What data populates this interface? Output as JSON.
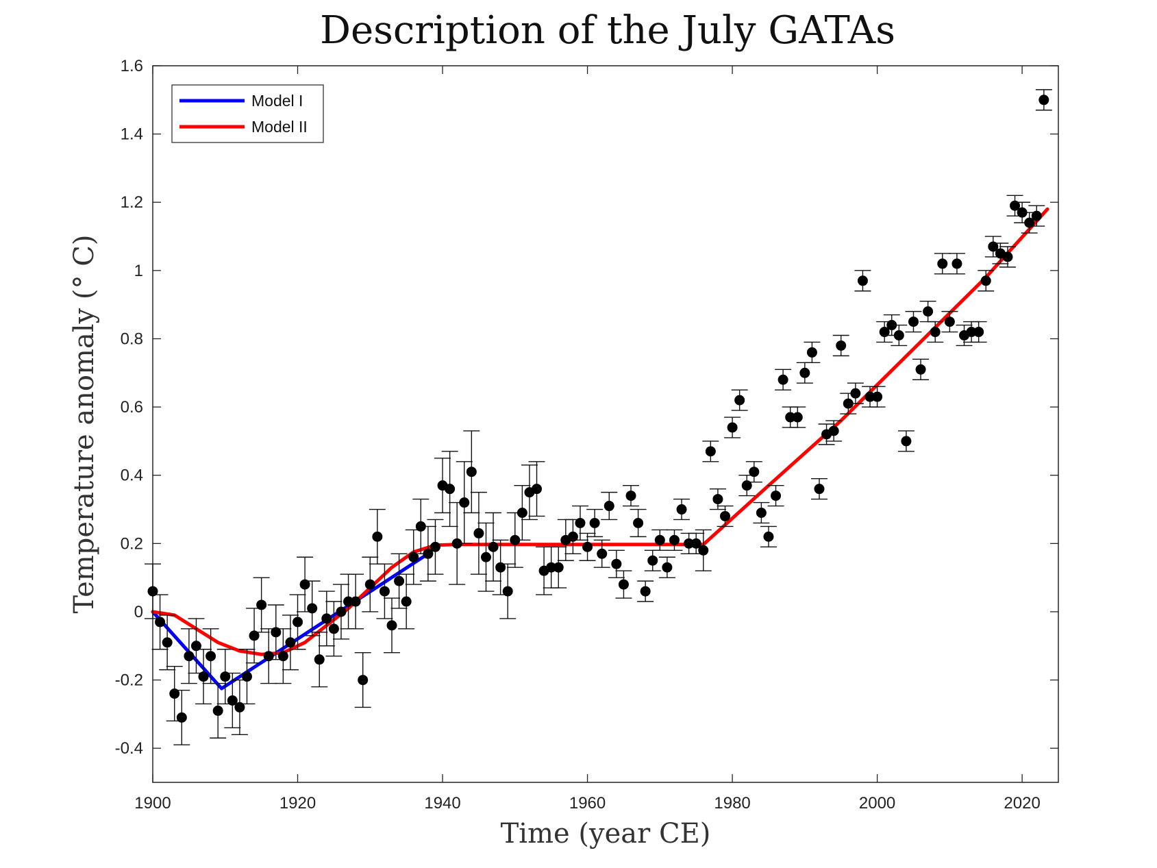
{
  "chart_data": {
    "type": "scatter",
    "title": "Description of the July GATAs",
    "xlabel": "Time (year CE)",
    "ylabel": "Temperature anomaly (° C)",
    "xlim": [
      1900,
      2025
    ],
    "ylim": [
      -0.5,
      1.6
    ],
    "xticks": [
      1900,
      1920,
      1940,
      1960,
      1980,
      2000,
      2020
    ],
    "yticks": [
      -0.4,
      -0.2,
      0,
      0.2,
      0.4,
      0.6,
      0.8,
      1,
      1.2,
      1.4,
      1.6
    ],
    "ytick_labels": [
      "-0.4",
      "-0.2",
      "0",
      "0.2",
      "0.4",
      "0.6",
      "0.8",
      "1",
      "1.2",
      "1.4",
      "1.6"
    ],
    "grid": false,
    "legend_position": "top-left",
    "observations": {
      "name": "July GATA",
      "color": "#000000",
      "points": [
        [
          1900,
          0.06,
          0.08
        ],
        [
          1901,
          -0.03,
          0.08
        ],
        [
          1902,
          -0.09,
          0.08
        ],
        [
          1903,
          -0.24,
          0.08
        ],
        [
          1904,
          -0.31,
          0.08
        ],
        [
          1905,
          -0.13,
          0.08
        ],
        [
          1906,
          -0.1,
          0.08
        ],
        [
          1907,
          -0.19,
          0.08
        ],
        [
          1908,
          -0.13,
          0.08
        ],
        [
          1909,
          -0.29,
          0.08
        ],
        [
          1910,
          -0.19,
          0.08
        ],
        [
          1911,
          -0.26,
          0.08
        ],
        [
          1912,
          -0.28,
          0.08
        ],
        [
          1913,
          -0.19,
          0.08
        ],
        [
          1914,
          -0.07,
          0.08
        ],
        [
          1915,
          0.02,
          0.08
        ],
        [
          1916,
          -0.13,
          0.08
        ],
        [
          1917,
          -0.06,
          0.08
        ],
        [
          1918,
          -0.13,
          0.08
        ],
        [
          1919,
          -0.09,
          0.08
        ],
        [
          1920,
          -0.03,
          0.08
        ],
        [
          1921,
          0.08,
          0.08
        ],
        [
          1922,
          0.01,
          0.08
        ],
        [
          1923,
          -0.14,
          0.08
        ],
        [
          1924,
          -0.02,
          0.08
        ],
        [
          1925,
          -0.05,
          0.08
        ],
        [
          1926,
          0.0,
          0.08
        ],
        [
          1927,
          0.03,
          0.08
        ],
        [
          1928,
          0.03,
          0.08
        ],
        [
          1929,
          -0.2,
          0.08
        ],
        [
          1930,
          0.08,
          0.08
        ],
        [
          1931,
          0.22,
          0.08
        ],
        [
          1932,
          0.06,
          0.08
        ],
        [
          1933,
          -0.04,
          0.08
        ],
        [
          1934,
          0.09,
          0.08
        ],
        [
          1935,
          0.03,
          0.08
        ],
        [
          1936,
          0.16,
          0.08
        ],
        [
          1937,
          0.25,
          0.08
        ],
        [
          1938,
          0.17,
          0.08
        ],
        [
          1939,
          0.19,
          0.08
        ],
        [
          1940,
          0.37,
          0.08
        ],
        [
          1941,
          0.36,
          0.11
        ],
        [
          1942,
          0.2,
          0.12
        ],
        [
          1943,
          0.32,
          0.12
        ],
        [
          1944,
          0.41,
          0.12
        ],
        [
          1945,
          0.23,
          0.12
        ],
        [
          1946,
          0.16,
          0.1
        ],
        [
          1947,
          0.19,
          0.1
        ],
        [
          1948,
          0.13,
          0.08
        ],
        [
          1949,
          0.06,
          0.08
        ],
        [
          1950,
          0.21,
          0.08
        ],
        [
          1951,
          0.29,
          0.08
        ],
        [
          1952,
          0.35,
          0.08
        ],
        [
          1953,
          0.36,
          0.08
        ],
        [
          1954,
          0.12,
          0.07
        ],
        [
          1955,
          0.13,
          0.06
        ],
        [
          1956,
          0.13,
          0.06
        ],
        [
          1957,
          0.21,
          0.06
        ],
        [
          1958,
          0.22,
          0.05
        ],
        [
          1959,
          0.26,
          0.05
        ],
        [
          1960,
          0.19,
          0.04
        ],
        [
          1961,
          0.26,
          0.04
        ],
        [
          1962,
          0.17,
          0.04
        ],
        [
          1963,
          0.31,
          0.04
        ],
        [
          1964,
          0.14,
          0.04
        ],
        [
          1965,
          0.08,
          0.04
        ],
        [
          1966,
          0.34,
          0.03
        ],
        [
          1967,
          0.26,
          0.04
        ],
        [
          1968,
          0.06,
          0.03
        ],
        [
          1969,
          0.15,
          0.03
        ],
        [
          1970,
          0.21,
          0.03
        ],
        [
          1971,
          0.13,
          0.03
        ],
        [
          1972,
          0.21,
          0.03
        ],
        [
          1973,
          0.3,
          0.03
        ],
        [
          1974,
          0.2,
          0.03
        ],
        [
          1975,
          0.2,
          0.03
        ],
        [
          1976,
          0.18,
          0.06
        ],
        [
          1977,
          0.47,
          0.03
        ],
        [
          1978,
          0.33,
          0.03
        ],
        [
          1979,
          0.28,
          0.03
        ],
        [
          1980,
          0.54,
          0.03
        ],
        [
          1981,
          0.62,
          0.03
        ],
        [
          1982,
          0.37,
          0.03
        ],
        [
          1983,
          0.41,
          0.03
        ],
        [
          1984,
          0.29,
          0.03
        ],
        [
          1985,
          0.22,
          0.03
        ],
        [
          1986,
          0.34,
          0.03
        ],
        [
          1987,
          0.68,
          0.03
        ],
        [
          1988,
          0.57,
          0.03
        ],
        [
          1989,
          0.57,
          0.03
        ],
        [
          1990,
          0.7,
          0.03
        ],
        [
          1991,
          0.76,
          0.03
        ],
        [
          1992,
          0.36,
          0.03
        ],
        [
          1993,
          0.52,
          0.03
        ],
        [
          1994,
          0.53,
          0.03
        ],
        [
          1995,
          0.78,
          0.03
        ],
        [
          1996,
          0.61,
          0.03
        ],
        [
          1997,
          0.64,
          0.03
        ],
        [
          1998,
          0.97,
          0.03
        ],
        [
          1999,
          0.63,
          0.03
        ],
        [
          2000,
          0.63,
          0.03
        ],
        [
          2001,
          0.82,
          0.03
        ],
        [
          2002,
          0.84,
          0.03
        ],
        [
          2003,
          0.81,
          0.03
        ],
        [
          2004,
          0.5,
          0.03
        ],
        [
          2005,
          0.85,
          0.03
        ],
        [
          2006,
          0.71,
          0.03
        ],
        [
          2007,
          0.88,
          0.03
        ],
        [
          2008,
          0.82,
          0.03
        ],
        [
          2009,
          1.02,
          0.03
        ],
        [
          2010,
          0.85,
          0.03
        ],
        [
          2011,
          1.02,
          0.03
        ],
        [
          2012,
          0.81,
          0.03
        ],
        [
          2013,
          0.82,
          0.03
        ],
        [
          2014,
          0.82,
          0.03
        ],
        [
          2015,
          0.97,
          0.03
        ],
        [
          2016,
          1.07,
          0.03
        ],
        [
          2017,
          1.05,
          0.03
        ],
        [
          2018,
          1.04,
          0.03
        ],
        [
          2019,
          1.19,
          0.03
        ],
        [
          2020,
          1.17,
          0.03
        ],
        [
          2021,
          1.14,
          0.03
        ],
        [
          2022,
          1.16,
          0.03
        ],
        [
          2023,
          1.5,
          0.03
        ]
      ]
    },
    "series": [
      {
        "name": "Model I",
        "color": "#0000ff",
        "x": [
          1900,
          1909.5,
          1938
        ],
        "y": [
          0.0,
          -0.225,
          0.17
        ]
      },
      {
        "name": "Model II",
        "color": "#ff0000",
        "x": [
          1900,
          1903,
          1906,
          1909,
          1912,
          1915,
          1918,
          1921,
          1924,
          1927,
          1930,
          1933,
          1936,
          1939,
          1942,
          1950,
          1960,
          1970,
          1976,
          1985,
          1995,
          2005,
          2015,
          2023.5
        ],
        "y": [
          0.0,
          -0.01,
          -0.05,
          -0.09,
          -0.115,
          -0.125,
          -0.12,
          -0.09,
          -0.04,
          0.01,
          0.07,
          0.13,
          0.175,
          0.195,
          0.197,
          0.197,
          0.197,
          0.197,
          0.197,
          0.37,
          0.56,
          0.77,
          0.98,
          1.18
        ]
      }
    ]
  }
}
